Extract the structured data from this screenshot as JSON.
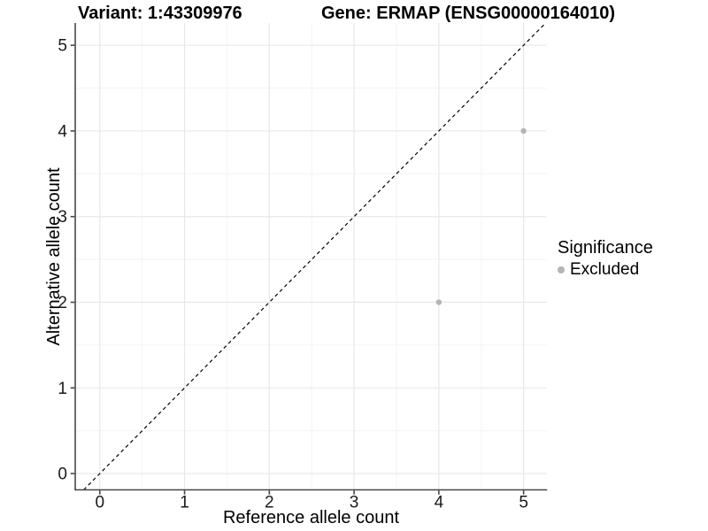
{
  "figure": {
    "title_left": "Variant: 1:43309976",
    "title_right": "Gene: ERMAP (ENSG00000164010)"
  },
  "legend": {
    "title": "Significance",
    "items": [
      {
        "label": "Excluded",
        "color": "#b5b5b5"
      }
    ]
  },
  "chart_data": {
    "type": "scatter",
    "title": "Variant: 1:43309976    Gene: ERMAP (ENSG00000164010)",
    "xlabel": "Reference allele count",
    "ylabel": "Alternative allele count",
    "xlim": [
      -0.29,
      5.27
    ],
    "ylim": [
      -0.19,
      5.26
    ],
    "x_ticks": [
      0,
      1,
      2,
      3,
      4,
      5
    ],
    "y_ticks": [
      0,
      1,
      2,
      3,
      4,
      5
    ],
    "minor_ticks_x": [
      0.5,
      1.5,
      2.5,
      3.5,
      4.5
    ],
    "minor_ticks_y": [
      0.5,
      1.5,
      2.5,
      3.5,
      4.5
    ],
    "grid": true,
    "legend_position": "right",
    "series": [
      {
        "name": "Excluded",
        "color": "#b5b5b5",
        "points": [
          {
            "x": 4,
            "y": 2
          },
          {
            "x": 5,
            "y": 4
          }
        ]
      }
    ],
    "reference_line": {
      "kind": "identity",
      "style": "dashed",
      "color": "#000000"
    }
  },
  "style": {
    "axis_line_color": "#474747",
    "tick_label_color": "#1a1a1a",
    "major_grid_color": "#e8e8e8",
    "minor_grid_color": "#f3f3f3"
  }
}
